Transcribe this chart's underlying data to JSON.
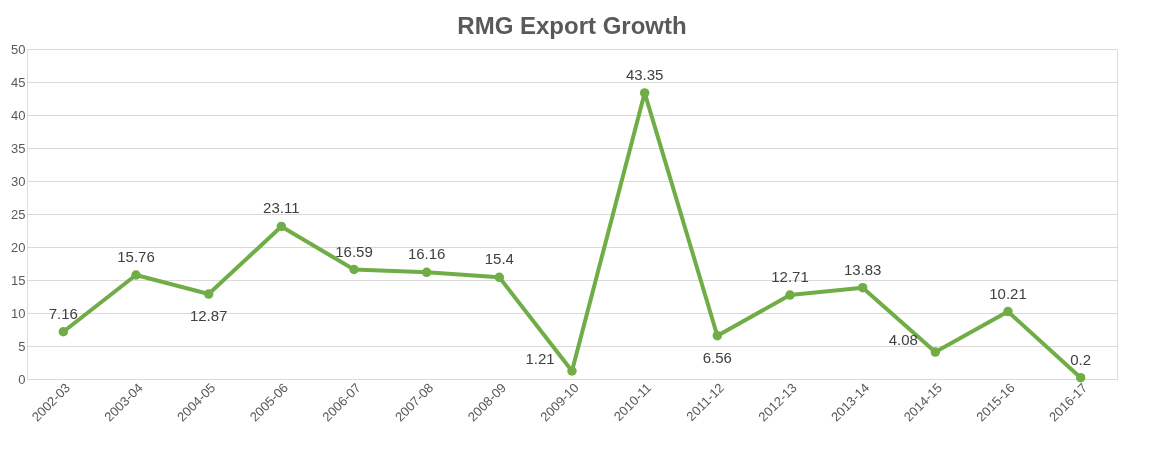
{
  "chart_data": {
    "type": "line",
    "title": "RMG Export Growth",
    "categories": [
      "2002-03",
      "2003-04",
      "2004-05",
      "2005-06",
      "2006-07",
      "2007-08",
      "2008-09",
      "2009-10",
      "2010-11",
      "2011-12",
      "2012-13",
      "2013-14",
      "2014-15",
      "2015-16",
      "2016-17"
    ],
    "series": [
      {
        "color": "#70ad47",
        "values": [
          7.16,
          15.76,
          12.87,
          23.11,
          16.59,
          16.16,
          15.4,
          1.21,
          43.35,
          6.56,
          12.71,
          13.83,
          4.08,
          10.21,
          0.2
        ]
      }
    ],
    "ylim": [
      0,
      50
    ],
    "yticks": [
      0,
      5,
      10,
      15,
      20,
      25,
      30,
      35,
      40,
      45,
      50
    ],
    "grid": "y",
    "data_labels": true,
    "marker": "circle",
    "line_style": "solid"
  }
}
